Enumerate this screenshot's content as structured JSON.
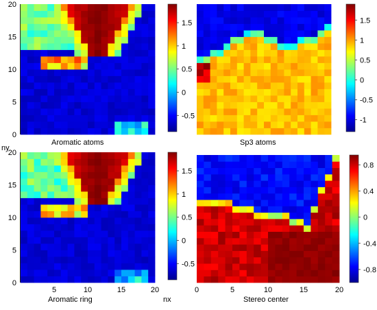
{
  "figure": {
    "y_axis_label": "ny",
    "x_axis_label": "nx"
  },
  "chart_data": [
    {
      "type": "heatmap",
      "title": "Aromatic atoms",
      "grid_size": [
        20,
        20
      ],
      "x_ticks": [],
      "y_ticks": [
        "0",
        "5",
        "10",
        "15",
        "20"
      ],
      "colorbar_ticks": [
        1.5,
        1,
        0.5,
        0,
        -0.5
      ],
      "colorbar_tick_labels": [
        "1.5",
        "1",
        "0.5",
        "0",
        "-0.5"
      ],
      "value_range": [
        -0.85,
        1.9
      ],
      "colormap": [
        "#00008f",
        "#0000ff",
        "#007fff",
        "#00ffff",
        "#7fff7f",
        "#ffff00",
        "#ff7f00",
        "#ff0000",
        "#7f0000"
      ],
      "pattern": "high values (1.5-1.9) in upper-middle region cols 8-15 rows 13-20, transition band 0-1 along its border, low (-0.6 to -0.85) elsewhere"
    },
    {
      "type": "heatmap",
      "title": "Sp3 atoms",
      "grid_size": [
        20,
        20
      ],
      "x_ticks": [],
      "y_ticks": [],
      "colorbar_ticks": [
        1.5,
        1,
        0.5,
        0,
        -0.5,
        -1
      ],
      "colorbar_tick_labels": [
        "1.5",
        "1",
        "0.5",
        "0",
        "-0.5",
        "-1"
      ],
      "value_range": [
        -1.3,
        1.9
      ],
      "colormap": [
        "#00008f",
        "#0000ff",
        "#007fff",
        "#00ffff",
        "#7fff7f",
        "#ffff00",
        "#ff7f00",
        "#ff0000",
        "#7f0000"
      ],
      "pattern": "low values (-1 to -1.3) in upper region above a curved boundary, moderate-high (0.5-1) below, hotspot near left edge row 10"
    },
    {
      "type": "heatmap",
      "title": "Aromatic ring",
      "grid_size": [
        20,
        20
      ],
      "x_ticks": [
        "5",
        "10",
        "15",
        "20"
      ],
      "y_ticks": [
        "0",
        "5",
        "10",
        "15",
        "20"
      ],
      "colorbar_ticks": [
        1.5,
        1,
        0.5,
        0,
        -0.5
      ],
      "colorbar_tick_labels": [
        "1.5",
        "1",
        "0.5",
        "0",
        "-0.5"
      ],
      "value_range": [
        -0.85,
        1.9
      ],
      "colormap": [
        "#00008f",
        "#0000ff",
        "#007fff",
        "#00ffff",
        "#7fff7f",
        "#ffff00",
        "#ff7f00",
        "#ff0000",
        "#7f0000"
      ],
      "pattern": "similar to aromatic atoms: high region upper-middle, low elsewhere"
    },
    {
      "type": "heatmap",
      "title": "Stereo center",
      "grid_size": [
        20,
        20
      ],
      "x_ticks": [
        "0",
        "5",
        "10",
        "15",
        "20"
      ],
      "y_ticks": [],
      "colorbar_ticks": [
        0.8,
        0.4,
        0,
        -0.4,
        -0.8
      ],
      "colorbar_tick_labels": [
        "0.8",
        "0.4",
        "0",
        "-0.4",
        "-0.8"
      ],
      "value_range": [
        -1.0,
        0.95
      ],
      "colormap": [
        "#00008f",
        "#0000ff",
        "#007fff",
        "#00ffff",
        "#7fff7f",
        "#ffff00",
        "#ff7f00",
        "#ff0000",
        "#7f0000"
      ],
      "pattern": "low values (-0.8 to -1) in upper-left region, high (0.7-0.95) in lower-right region, sharp diagonal boundary"
    }
  ]
}
